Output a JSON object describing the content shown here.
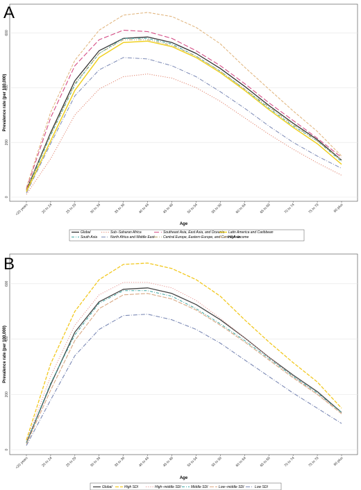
{
  "chart_data": [
    {
      "panel": "A",
      "type": "line",
      "xlabel": "Age",
      "ylabel": "Prevalence rate (per 100,000)",
      "ylim": [
        0,
        700
      ],
      "yticks": [
        0,
        200,
        400,
        600
      ],
      "grid": true,
      "legend_position": "bottom",
      "categories": [
        "<20 years",
        "20 to 24",
        "25 to 29",
        "30 to 34",
        "35 to 39",
        "40 to 44",
        "45 to 49",
        "50 to 54",
        "55 to 59",
        "60 to 64",
        "65 to 69",
        "70 to 74",
        "75 to 79",
        "80 plus"
      ],
      "series": [
        {
          "name": "Global",
          "color": "#333333",
          "dash": "",
          "width": 1.3,
          "values": [
            25,
            235,
            425,
            535,
            580,
            585,
            565,
            525,
            470,
            405,
            335,
            270,
            210,
            135
          ]
        },
        {
          "name": "South Asia",
          "color": "#3aa5a0",
          "dash": "4,2,1,2",
          "width": 1.0,
          "values": [
            20,
            225,
            410,
            525,
            580,
            580,
            560,
            515,
            460,
            395,
            325,
            260,
            205,
            130
          ]
        },
        {
          "name": "Sub−Saharan Africa",
          "color": "#e0806a",
          "dash": "1.2,2",
          "width": 1.0,
          "values": [
            10,
            140,
            300,
            395,
            440,
            450,
            435,
            400,
            350,
            290,
            230,
            175,
            125,
            80
          ]
        },
        {
          "name": "North Africa and Middle East",
          "color": "#7b89b5",
          "dash": "6,2,1,2",
          "width": 1.0,
          "values": [
            15,
            195,
            370,
            465,
            510,
            505,
            480,
            440,
            385,
            325,
            260,
            200,
            150,
            105
          ]
        },
        {
          "name": "Southeast Asia, East Asia, and Oceania",
          "color": "#d44c84",
          "dash": "7,3",
          "width": 1.1,
          "values": [
            30,
            290,
            480,
            575,
            610,
            605,
            580,
            535,
            480,
            415,
            345,
            280,
            215,
            145
          ]
        },
        {
          "name": "Central Europe, Eastern Europe, and Central Asia",
          "color": "#b5a46a",
          "dash": "5,2,1,2,1,2",
          "width": 1.0,
          "values": [
            25,
            230,
            415,
            525,
            575,
            575,
            555,
            515,
            460,
            395,
            330,
            265,
            205,
            135
          ]
        },
        {
          "name": "Latin America and Caribbean",
          "color": "#f0d020",
          "dash": "",
          "width": 1.5,
          "values": [
            20,
            205,
            390,
            510,
            565,
            570,
            550,
            510,
            455,
            390,
            320,
            255,
            195,
            120
          ]
        },
        {
          "name": "High−income",
          "color": "#e2b883",
          "dash": "4,2",
          "width": 1.1,
          "values": [
            35,
            310,
            500,
            610,
            665,
            675,
            660,
            620,
            560,
            475,
            395,
            315,
            240,
            150
          ]
        }
      ]
    },
    {
      "panel": "B",
      "type": "line",
      "xlabel": "Age",
      "ylabel": "Prevalence rate (per 100,000)",
      "ylim": [
        0,
        700
      ],
      "yticks": [
        0,
        200,
        400,
        600
      ],
      "grid": true,
      "legend_position": "bottom",
      "categories": [
        "<20 years",
        "20 to 24",
        "25 to 29",
        "30 to 34",
        "35 to 39",
        "40 to 44",
        "45 to 49",
        "50 to 54",
        "55 to 59",
        "60 to 64",
        "65 to 69",
        "70 to 74",
        "75 to 79",
        "80 plus"
      ],
      "series": [
        {
          "name": "Global",
          "color": "#444444",
          "dash": "",
          "width": 1.3,
          "values": [
            25,
            235,
            425,
            535,
            580,
            585,
            565,
            525,
            470,
            405,
            335,
            270,
            210,
            135
          ]
        },
        {
          "name": "High SDI",
          "color": "#f2c81e",
          "dash": "5,2",
          "width": 1.3,
          "values": [
            35,
            310,
            500,
            615,
            670,
            675,
            655,
            615,
            555,
            470,
            390,
            315,
            245,
            150
          ]
        },
        {
          "name": "High−middle SDI",
          "color": "#e89590",
          "dash": "1.2,2",
          "width": 1.0,
          "values": [
            30,
            265,
            450,
            560,
            605,
            605,
            585,
            540,
            475,
            405,
            335,
            265,
            200,
            135
          ]
        },
        {
          "name": "Middle SDI",
          "color": "#3aa5a0",
          "dash": "4,2,1,2",
          "width": 1.0,
          "values": [
            25,
            240,
            415,
            530,
            575,
            575,
            555,
            510,
            455,
            395,
            330,
            265,
            205,
            135
          ]
        },
        {
          "name": "Low−middle SDI",
          "color": "#d9a883",
          "dash": "6,2",
          "width": 1.1,
          "values": [
            20,
            215,
            395,
            510,
            560,
            565,
            545,
            505,
            450,
            390,
            325,
            260,
            200,
            130
          ]
        },
        {
          "name": "Low SDI",
          "color": "#7b89b5",
          "dash": "6,2,1,2",
          "width": 1.1,
          "values": [
            15,
            180,
            340,
            435,
            485,
            490,
            470,
            435,
            385,
            325,
            265,
            205,
            150,
            95
          ]
        }
      ]
    }
  ]
}
